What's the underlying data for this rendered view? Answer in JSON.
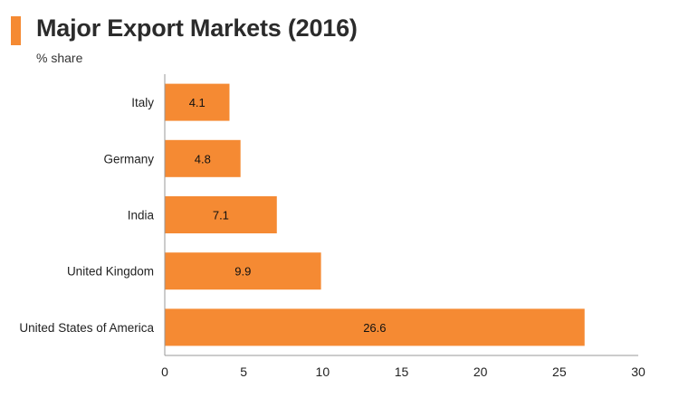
{
  "header": {
    "title": "Major Export Markets (2016)",
    "subtitle": "% share"
  },
  "colors": {
    "accent": "#f58a33",
    "bar": "#f58a33",
    "axis": "#999999"
  },
  "chart_data": {
    "type": "bar",
    "orientation": "horizontal",
    "title": "Major Export Markets (2016)",
    "subtitle": "% share",
    "xlabel": "",
    "ylabel": "",
    "categories": [
      "Italy",
      "Germany",
      "India",
      "United Kingdom",
      "United States of America"
    ],
    "values": [
      4.1,
      4.8,
      7.1,
      9.9,
      26.6
    ],
    "xlim": [
      0,
      30
    ],
    "xticks": [
      0,
      5,
      10,
      15,
      20,
      25,
      30
    ],
    "grid": false,
    "legend": "none",
    "data_labels": true
  }
}
